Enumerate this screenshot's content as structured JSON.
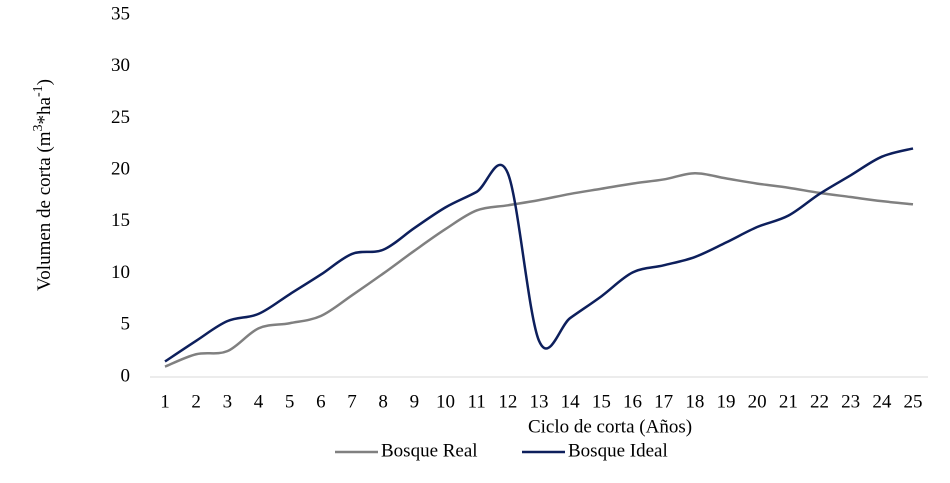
{
  "chart_data": {
    "type": "line",
    "y_label_parts": [
      "Volumen de corta (m",
      "3",
      "*ha",
      "-1",
      ")"
    ],
    "x_label": "Ciclo de corta (Años)",
    "categories": [
      1,
      2,
      3,
      4,
      5,
      6,
      7,
      8,
      9,
      10,
      11,
      12,
      13,
      14,
      15,
      16,
      17,
      18,
      19,
      20,
      21,
      22,
      23,
      24,
      25
    ],
    "series": [
      {
        "name": "Bosque Real",
        "color": "#808080",
        "values": [
          1.0,
          2.2,
          2.5,
          4.7,
          5.2,
          5.9,
          7.9,
          10.0,
          12.2,
          14.3,
          16.1,
          16.6,
          17.1,
          17.7,
          18.2,
          18.7,
          19.1,
          19.7,
          19.2,
          18.7,
          18.3,
          17.8,
          17.4,
          17.0,
          16.7
        ]
      },
      {
        "name": "Bosque Ideal",
        "color": "#0d1f5c",
        "values": [
          1.5,
          3.5,
          5.4,
          6.1,
          8.0,
          9.9,
          11.9,
          12.3,
          14.4,
          16.4,
          17.9,
          19.7,
          3.5,
          5.7,
          7.8,
          10.1,
          10.8,
          11.6,
          13.0,
          14.5,
          15.6,
          17.7,
          19.5,
          21.3,
          22.1
        ]
      }
    ],
    "ylim": [
      0,
      35
    ],
    "yticks": [
      0,
      5,
      10,
      15,
      20,
      25,
      30,
      35
    ],
    "legend": "bottom",
    "grid": false
  }
}
